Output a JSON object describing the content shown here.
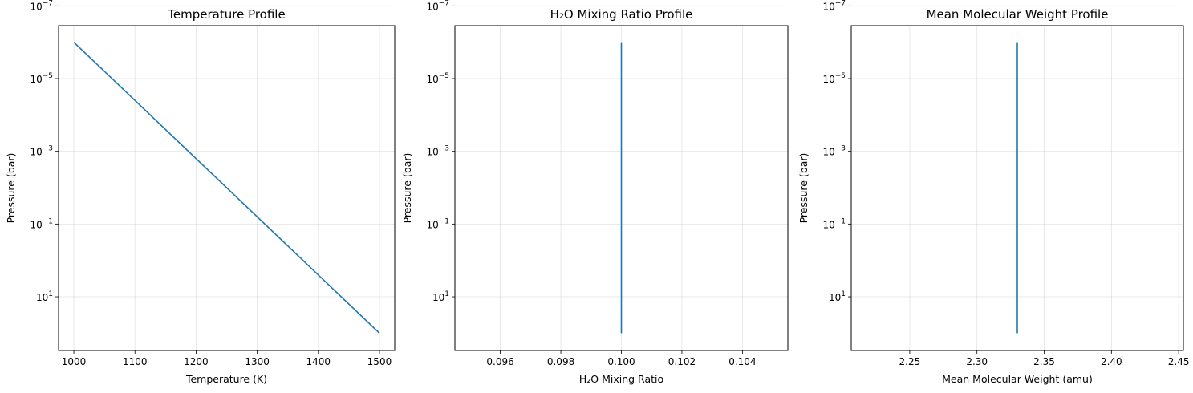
{
  "chart_data": [
    {
      "type": "line",
      "title": "Temperature Profile",
      "xlabel": "Temperature (K)",
      "ylabel": "Pressure (bar)",
      "yscale": "log",
      "y_inverted": true,
      "grid": true,
      "xlim": [
        975,
        1525
      ],
      "ylim": [
        300,
        3.5e-07
      ],
      "xticks": [
        1000,
        1100,
        1200,
        1300,
        1400,
        1500
      ],
      "xtick_labels": [
        "1000",
        "1100",
        "1200",
        "1300",
        "1400",
        "1500"
      ],
      "yticks": [
        1e-07,
        1e-05,
        0.001,
        0.1,
        10
      ],
      "ytick_labels": [
        {
          "base": "10",
          "exp": "−7"
        },
        {
          "base": "10",
          "exp": "−5"
        },
        {
          "base": "10",
          "exp": "−3"
        },
        {
          "base": "10",
          "exp": "−1"
        },
        {
          "base": "10",
          "exp": "1"
        }
      ],
      "series": [
        {
          "x": [
            1000,
            1500
          ],
          "y": [
            1e-06,
            100
          ],
          "color": "#1f77b4"
        }
      ]
    },
    {
      "type": "line",
      "title": "H₂O Mixing Ratio Profile",
      "xlabel": "H₂O Mixing Ratio",
      "ylabel": "Pressure (bar)",
      "yscale": "log",
      "y_inverted": true,
      "grid": true,
      "xlim": [
        0.0945,
        0.1055
      ],
      "ylim": [
        300,
        3.5e-07
      ],
      "xticks": [
        0.096,
        0.098,
        0.1,
        0.102,
        0.104
      ],
      "xtick_labels": [
        "0.096",
        "0.098",
        "0.100",
        "0.102",
        "0.104"
      ],
      "yticks": [
        1e-07,
        1e-05,
        0.001,
        0.1,
        10
      ],
      "ytick_labels": [
        {
          "base": "10",
          "exp": "−7"
        },
        {
          "base": "10",
          "exp": "−5"
        },
        {
          "base": "10",
          "exp": "−3"
        },
        {
          "base": "10",
          "exp": "−1"
        },
        {
          "base": "10",
          "exp": "1"
        }
      ],
      "series": [
        {
          "x": [
            0.1,
            0.1
          ],
          "y": [
            1e-06,
            100
          ],
          "color": "#1f77b4"
        }
      ]
    },
    {
      "type": "line",
      "title": "Mean Molecular Weight Profile",
      "xlabel": "Mean Molecular Weight (amu)",
      "ylabel": "Pressure (bar)",
      "yscale": "log",
      "y_inverted": true,
      "grid": true,
      "xlim": [
        2.2065,
        2.4535
      ],
      "ylim": [
        300,
        3.5e-07
      ],
      "xticks": [
        2.25,
        2.3,
        2.35,
        2.4,
        2.45
      ],
      "xtick_labels": [
        "2.25",
        "2.30",
        "2.35",
        "2.40",
        "2.45"
      ],
      "yticks": [
        1e-07,
        1e-05,
        0.001,
        0.1,
        10
      ],
      "ytick_labels": [
        {
          "base": "10",
          "exp": "−7"
        },
        {
          "base": "10",
          "exp": "−5"
        },
        {
          "base": "10",
          "exp": "−3"
        },
        {
          "base": "10",
          "exp": "−1"
        },
        {
          "base": "10",
          "exp": "1"
        }
      ],
      "series": [
        {
          "x": [
            2.33,
            2.33
          ],
          "y": [
            1e-06,
            100
          ],
          "color": "#1f77b4"
        }
      ]
    }
  ]
}
